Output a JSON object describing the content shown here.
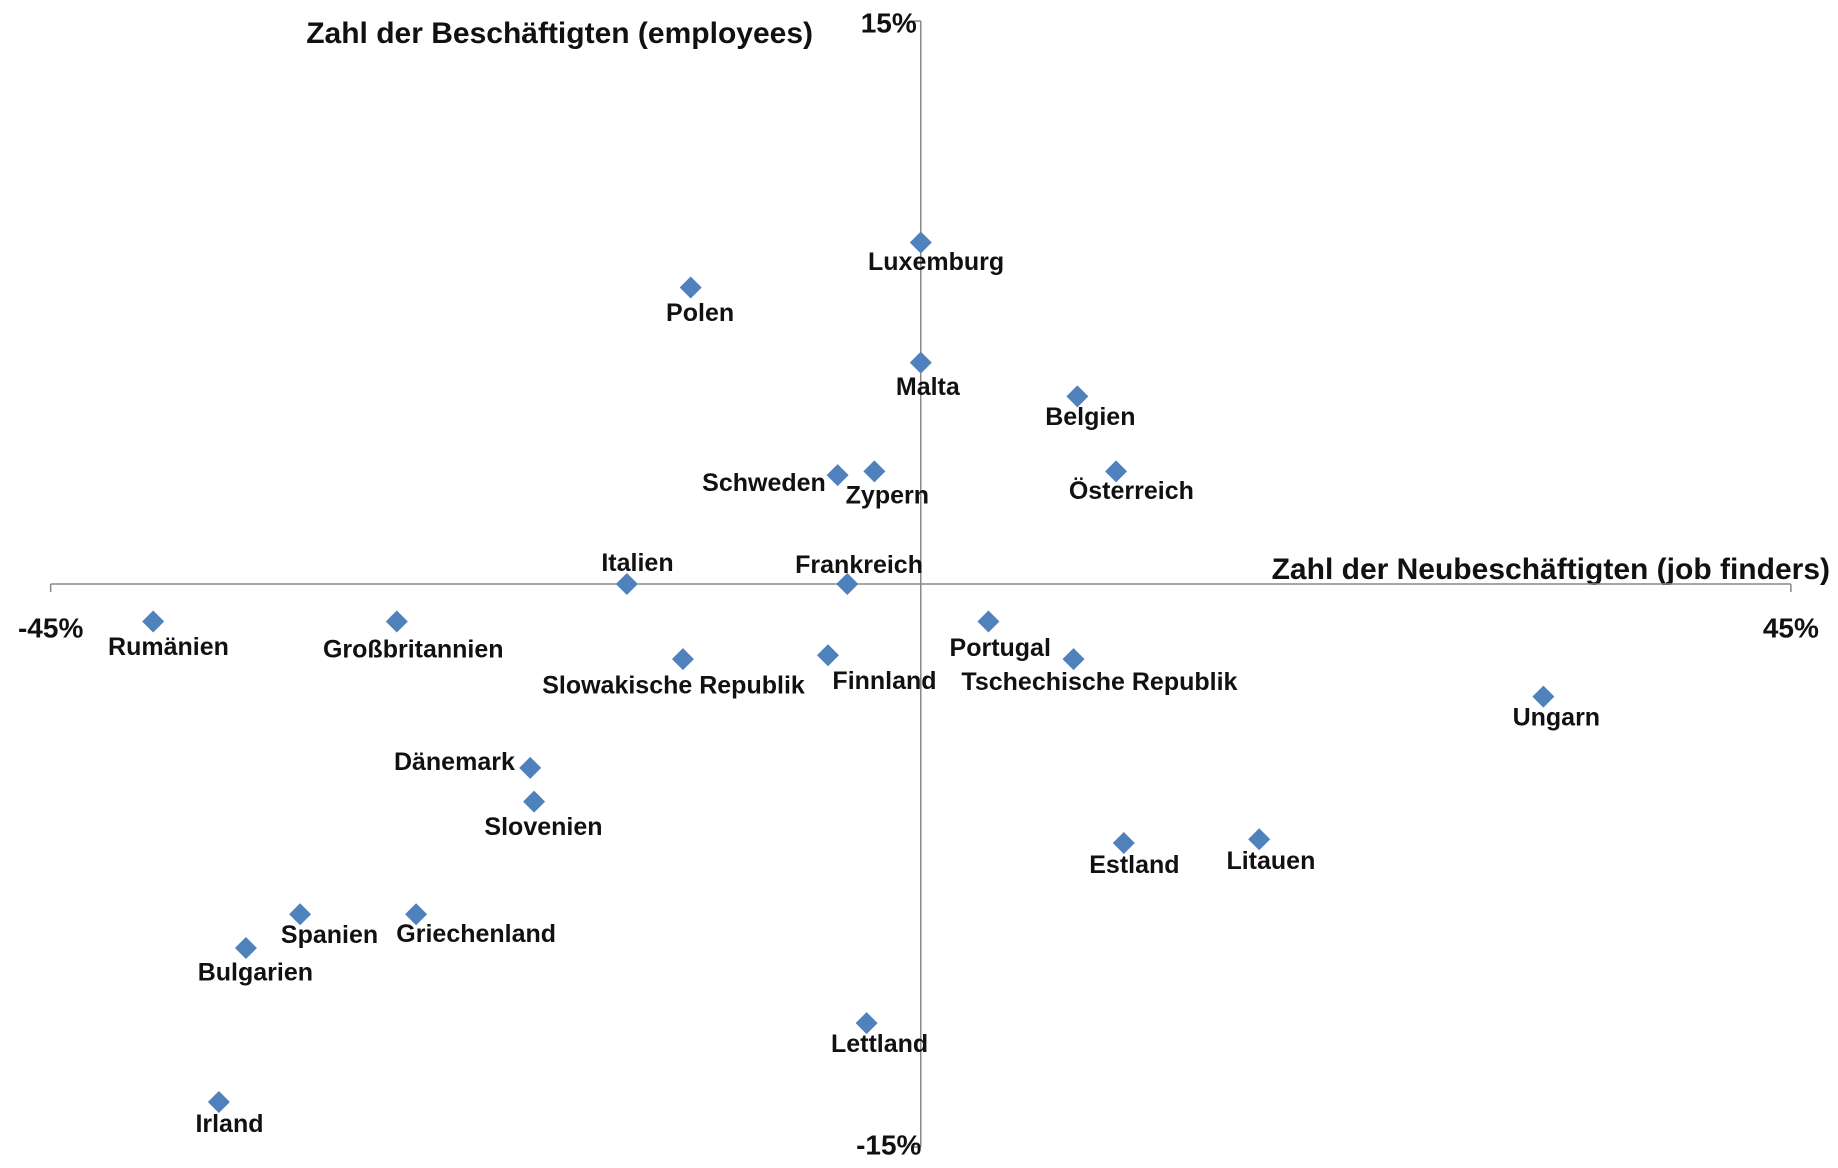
{
  "chart_data": {
    "type": "scatter",
    "x_label": "Zahl der Neubeschäftigten (job finders)",
    "y_label": "Zahl der Beschäftigten (employees)",
    "xlim": [
      -45,
      45
    ],
    "ylim": [
      -15,
      15
    ],
    "xticks": [
      {
        "value": -45,
        "label": "-45%"
      },
      {
        "value": 45,
        "label": "45%"
      }
    ],
    "yticks": [
      {
        "value": -15,
        "label": "-15%"
      },
      {
        "value": 15,
        "label": "15%"
      }
    ],
    "color": "#4f81bd",
    "labels": [
      "Luxemburg",
      "Polen",
      "Malta",
      "Belgien",
      "Schweden",
      "Zypern",
      "Österreich",
      "Italien",
      "Frankreich",
      "Rumänien",
      "Großbritannien",
      "Portugal",
      "Slowakische Republik",
      "Finnland",
      "Tschechische Republik",
      "Ungarn",
      "Dänemark",
      "Slovenien",
      "Estland",
      "Litauen",
      "Spanien",
      "Griechenland",
      "Bulgarien",
      "Lettland",
      "Irland"
    ],
    "x": [
      0,
      -11.9,
      0,
      8.1,
      -4.3,
      -2.4,
      10.1,
      -15.2,
      -3.8,
      -39.7,
      -27.1,
      3.5,
      -12.3,
      -4.8,
      7.9,
      32.2,
      -20.2,
      -20.0,
      10.5,
      17.5,
      -32.1,
      -26.1,
      -34.9,
      -2.8,
      -36.3
    ],
    "values": [
      9.1,
      7.9,
      5.9,
      5.0,
      2.9,
      3.0,
      3.0,
      0.0,
      0.0,
      -1.0,
      -1.0,
      -1.0,
      -2.0,
      -1.9,
      -2.0,
      -3.0,
      -4.9,
      -5.8,
      -6.9,
      -6.8,
      -8.8,
      -8.8,
      -9.7,
      -11.7,
      -13.8
    ]
  }
}
